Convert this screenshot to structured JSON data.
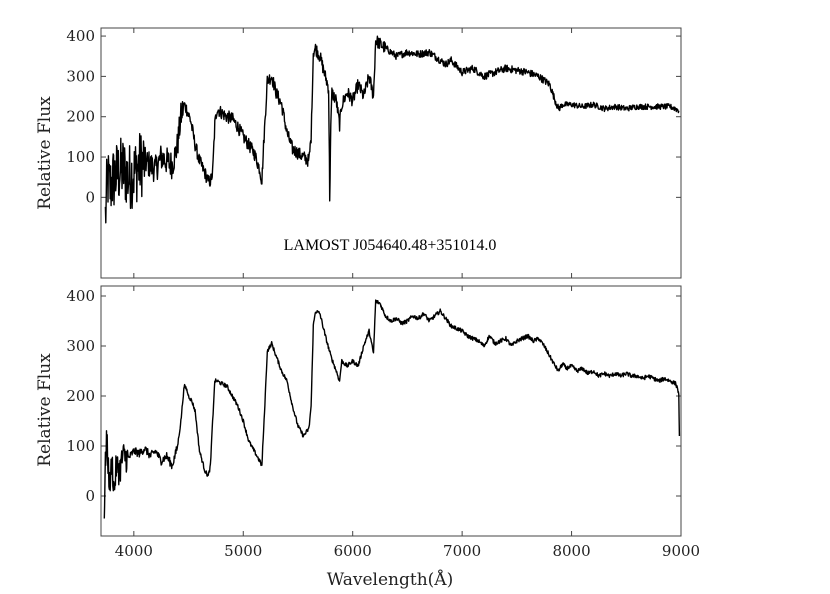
{
  "chart_data": [
    {
      "type": "line",
      "panel": "top",
      "annotation": "LAMOST J054640.48+351014.0",
      "xlabel": "",
      "ylabel": "Relative Flux",
      "xlim": [
        3700,
        9000
      ],
      "ylim": [
        -200,
        420
      ],
      "xticks": [
        "4000",
        "5000",
        "6000",
        "7000",
        "8000",
        "9000"
      ],
      "yticks": [
        "0",
        "100",
        "200",
        "300",
        "400"
      ],
      "yticks_values": [
        0,
        100,
        200,
        300,
        400
      ],
      "xticks_values": [
        4000,
        5000,
        6000,
        7000,
        8000,
        9000
      ],
      "show_x_tick_labels": false,
      "noisy": true,
      "series": [
        {
          "x": [
            3740,
            3760,
            3780,
            3800,
            3850,
            3900,
            3950,
            4000,
            4050,
            4100,
            4150,
            4200,
            4250,
            4300,
            4350,
            4400,
            4430,
            4460,
            4480,
            4520,
            4560,
            4600,
            4650,
            4680,
            4700,
            4720,
            4740,
            4760,
            4800,
            4850,
            4900,
            4950,
            5000,
            5050,
            5100,
            5150,
            5170,
            5190,
            5220,
            5260,
            5300,
            5350,
            5400,
            5450,
            5500,
            5550,
            5600,
            5620,
            5640,
            5660,
            5700,
            5750,
            5780,
            5790,
            5800,
            5810,
            5850,
            5880,
            5900,
            5950,
            6000,
            6050,
            6100,
            6150,
            6190,
            6210,
            6250,
            6300,
            6400,
            6500,
            6600,
            6700,
            6800,
            6850,
            6900,
            7000,
            7100,
            7200,
            7300,
            7400,
            7500,
            7600,
            7700,
            7800,
            7850,
            7880,
            7920,
            8000,
            8100,
            8200,
            8300,
            8400,
            8500,
            8600,
            8700,
            8800,
            8900,
            8950,
            8980
          ],
          "y": [
            -50,
            50,
            20,
            40,
            60,
            70,
            50,
            60,
            80,
            90,
            80,
            70,
            100,
            90,
            80,
            130,
            200,
            230,
            220,
            190,
            130,
            90,
            60,
            40,
            40,
            60,
            180,
            220,
            210,
            200,
            195,
            175,
            150,
            130,
            110,
            70,
            40,
            150,
            290,
            300,
            260,
            230,
            160,
            120,
            110,
            100,
            90,
            150,
            360,
            370,
            350,
            300,
            270,
            0,
            170,
            260,
            240,
            180,
            230,
            260,
            240,
            280,
            250,
            300,
            250,
            390,
            380,
            370,
            350,
            360,
            355,
            360,
            340,
            330,
            340,
            310,
            320,
            300,
            310,
            320,
            315,
            310,
            300,
            280,
            240,
            220,
            230,
            230,
            225,
            230,
            220,
            225,
            220,
            225,
            225,
            225,
            225,
            220,
            215
          ]
        }
      ]
    },
    {
      "type": "line",
      "panel": "bottom",
      "annotation": "",
      "xlabel": "Wavelength(Å)",
      "ylabel": "Relative Flux",
      "xlim": [
        3700,
        9000
      ],
      "ylim": [
        -80,
        420
      ],
      "xticks": [
        "4000",
        "5000",
        "6000",
        "7000",
        "8000",
        "9000"
      ],
      "yticks": [
        "0",
        "100",
        "200",
        "300",
        "400"
      ],
      "yticks_values": [
        0,
        100,
        200,
        300,
        400
      ],
      "xticks_values": [
        4000,
        5000,
        6000,
        7000,
        8000,
        9000
      ],
      "show_x_tick_labels": true,
      "noisy": false,
      "series": [
        {
          "x": [
            3730,
            3740,
            3750,
            3760,
            3780,
            3800,
            3820,
            3840,
            3870,
            3900,
            3950,
            4000,
            4050,
            4100,
            4150,
            4200,
            4250,
            4300,
            4350,
            4400,
            4430,
            4460,
            4480,
            4500,
            4530,
            4560,
            4600,
            4650,
            4680,
            4700,
            4720,
            4740,
            4760,
            4800,
            4850,
            4900,
            4950,
            5000,
            5050,
            5100,
            5150,
            5170,
            5190,
            5220,
            5260,
            5300,
            5350,
            5400,
            5450,
            5500,
            5550,
            5600,
            5620,
            5640,
            5660,
            5700,
            5750,
            5800,
            5850,
            5880,
            5900,
            5950,
            6000,
            6050,
            6100,
            6150,
            6190,
            6210,
            6250,
            6300,
            6350,
            6400,
            6450,
            6500,
            6550,
            6600,
            6650,
            6700,
            6750,
            6800,
            6850,
            6900,
            6950,
            7000,
            7050,
            7100,
            7150,
            7200,
            7250,
            7300,
            7350,
            7400,
            7450,
            7500,
            7550,
            7600,
            7650,
            7700,
            7750,
            7800,
            7850,
            7880,
            7920,
            7950,
            8000,
            8050,
            8100,
            8150,
            8200,
            8250,
            8300,
            8350,
            8400,
            8450,
            8500,
            8550,
            8600,
            8650,
            8700,
            8750,
            8800,
            8850,
            8900,
            8950,
            8970,
            8980,
            8985
          ],
          "y": [
            -40,
            60,
            120,
            80,
            20,
            70,
            10,
            60,
            50,
            80,
            75,
            90,
            85,
            95,
            80,
            90,
            70,
            80,
            60,
            100,
            150,
            220,
            215,
            200,
            190,
            170,
            90,
            50,
            40,
            60,
            150,
            230,
            230,
            225,
            220,
            200,
            180,
            150,
            110,
            90,
            70,
            60,
            150,
            290,
            305,
            280,
            250,
            230,
            180,
            140,
            120,
            135,
            180,
            340,
            370,
            365,
            320,
            280,
            250,
            230,
            270,
            260,
            270,
            260,
            300,
            330,
            285,
            390,
            385,
            360,
            350,
            355,
            345,
            350,
            360,
            355,
            365,
            350,
            360,
            370,
            355,
            340,
            335,
            330,
            320,
            315,
            310,
            300,
            320,
            305,
            310,
            315,
            300,
            310,
            315,
            320,
            310,
            315,
            300,
            280,
            260,
            250,
            265,
            255,
            260,
            250,
            255,
            245,
            250,
            240,
            245,
            240,
            245,
            240,
            245,
            240,
            240,
            235,
            240,
            235,
            230,
            235,
            230,
            225,
            215,
            200,
            120
          ]
        }
      ]
    }
  ]
}
